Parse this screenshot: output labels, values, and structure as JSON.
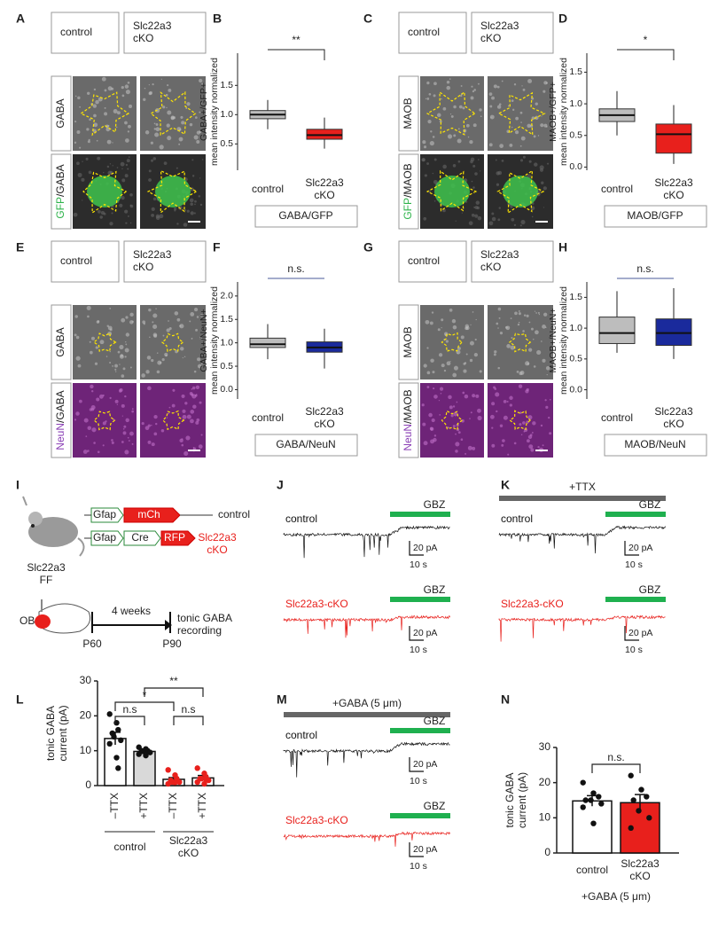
{
  "panel_labels": [
    "A",
    "B",
    "C",
    "D",
    "E",
    "F",
    "G",
    "H",
    "I",
    "J",
    "K",
    "L",
    "M",
    "N"
  ],
  "image_panels": [
    {
      "columns": [
        "control",
        "Slc22a3\ncKO"
      ],
      "rows": [
        [
          "GABA"
        ],
        [
          "GFP",
          "/GABA"
        ]
      ],
      "marker_color": "#2db34a"
    },
    {
      "columns": [
        "control",
        "Slc22a3\ncKO"
      ],
      "rows": [
        [
          "MAOB"
        ],
        [
          "GFP",
          "/MAOB"
        ]
      ],
      "marker_color": "#2db34a"
    },
    {
      "columns": [
        "control",
        "Slc22a3\ncKO"
      ],
      "rows": [
        [
          "GABA"
        ],
        [
          "NeuN",
          "/GABA"
        ]
      ],
      "marker_color": "#8a3fb5"
    },
    {
      "columns": [
        "control",
        "Slc22a3\ncKO"
      ],
      "rows": [
        [
          "MAOB"
        ],
        [
          "NeuN",
          "/MAOB"
        ]
      ],
      "marker_color": "#8a3fb5"
    }
  ],
  "chart_data": [
    {
      "type": "box",
      "y_label": "GABA+/GFP+\nmean intensity normalized",
      "footer": "GABA/GFP",
      "categories": [
        "control",
        "Slc22a3\ncKO"
      ],
      "colors": [
        "#bdbdbd",
        "#e8201c"
      ],
      "boxes": [
        {
          "whisker_low": 0.75,
          "q1": 0.93,
          "median": 1.0,
          "q3": 1.07,
          "whisker_high": 1.25
        },
        {
          "whisker_low": 0.42,
          "q1": 0.58,
          "median": 0.65,
          "q3": 0.75,
          "whisker_high": 0.95
        }
      ],
      "ylim": [
        0.05,
        2.05
      ],
      "yticks": [
        0.5,
        {
          "value": 1,
          "label": "1.0"
        },
        1.5
      ],
      "significance": "**"
    },
    {
      "type": "box",
      "y_label": "MAOB+/GFP+\nmean intensity normalized",
      "footer": "MAOB/GFP",
      "categories": [
        "control",
        "Slc22a3\ncKO"
      ],
      "colors": [
        "#bdbdbd",
        "#e8201c"
      ],
      "boxes": [
        {
          "whisker_low": 0.5,
          "q1": 0.72,
          "median": 0.82,
          "q3": 0.92,
          "whisker_high": 1.2
        },
        {
          "whisker_low": 0.05,
          "q1": 0.22,
          "median": 0.52,
          "q3": 0.68,
          "whisker_high": 0.98
        }
      ],
      "ylim": [
        -0.05,
        1.8
      ],
      "yticks": [
        {
          "value": 0,
          "label": "0.0"
        },
        0.5,
        {
          "value": 1,
          "label": "1.0"
        },
        1.5
      ],
      "significance": "*"
    },
    {
      "type": "box",
      "y_label": "GABA+/NeuN+\nmean intensity normalized",
      "footer": "GABA/NeuN",
      "categories": [
        "control",
        "Slc22a3\ncKO"
      ],
      "colors": [
        "#bdbdbd",
        "#1a2a9c"
      ],
      "boxes": [
        {
          "whisker_low": 0.65,
          "q1": 0.9,
          "median": 0.97,
          "q3": 1.1,
          "whisker_high": 1.4
        },
        {
          "whisker_low": 0.45,
          "q1": 0.8,
          "median": 0.9,
          "q3": 1.02,
          "whisker_high": 1.3
        }
      ],
      "ylim": [
        -0.2,
        2.3
      ],
      "yticks": [
        {
          "value": 0,
          "label": "0.0"
        },
        0.5,
        {
          "value": 1,
          "label": "1.0"
        },
        1.5,
        {
          "value": 2,
          "label": "2.0"
        }
      ],
      "significance": "n.s."
    },
    {
      "type": "box",
      "y_label": "MAOB+/NeuN+\nmean intensity normalized",
      "footer": "MAOB/NeuN",
      "categories": [
        "control",
        "Slc22a3\ncKO"
      ],
      "colors": [
        "#bdbdbd",
        "#1a2a9c"
      ],
      "boxes": [
        {
          "whisker_low": 0.6,
          "q1": 0.75,
          "median": 0.92,
          "q3": 1.18,
          "whisker_high": 1.6
        },
        {
          "whisker_low": 0.5,
          "q1": 0.72,
          "median": 0.92,
          "q3": 1.15,
          "whisker_high": 1.65
        }
      ],
      "ylim": [
        -0.15,
        1.75
      ],
      "yticks": [
        {
          "value": 0,
          "label": "0.0"
        },
        0.5,
        {
          "value": 1,
          "label": "1.0"
        },
        1.5
      ],
      "significance": "n.s."
    },
    {
      "type": "bar",
      "y_label": "tonic GABA\ncurrent (pA)",
      "categories": [
        "–TTX",
        "+TTX",
        "–TTX",
        "+TTX"
      ],
      "groups": [
        "control",
        "Slc22a3\ncKO"
      ],
      "values": [
        13.5,
        9.8,
        1.8,
        2.2
      ],
      "errors": [
        1.8,
        0.6,
        0.5,
        0.7
      ],
      "colors": [
        "#ffffff",
        "#d9d9d9",
        "#ffffff",
        "#ffffff"
      ],
      "point_colors": [
        "#111111",
        "#111111",
        "#e8201c",
        "#e8201c"
      ],
      "points": [
        [
          20.5,
          18,
          16,
          15,
          14,
          13,
          12,
          8,
          5
        ],
        [
          11,
          10.5,
          10,
          10,
          9.8,
          9.5,
          9,
          8.6
        ],
        [
          4.5,
          3,
          2,
          1.5,
          1,
          1,
          0.5,
          0.9
        ],
        [
          5,
          3.5,
          2.5,
          2,
          2,
          1.5,
          1,
          0.5,
          1.8
        ]
      ],
      "ylim": [
        0,
        30
      ],
      "yticks": [
        0,
        10,
        20,
        30
      ],
      "significance": [
        "n.s",
        "*",
        "**",
        "n.s"
      ]
    },
    {
      "type": "bar",
      "y_label": "tonic GABA\ncurrent (pA)",
      "x_label": "+GABA (5 μm)",
      "categories": [
        "control",
        "Slc22a3\ncKO"
      ],
      "values": [
        14.8,
        14.3
      ],
      "errors": [
        1.5,
        2.3
      ],
      "colors": [
        "#ffffff",
        "#e8201c"
      ],
      "point_colors": [
        "#111111",
        "#111111"
      ],
      "points": [
        [
          20,
          17,
          16,
          15,
          15,
          14,
          13,
          8.4
        ],
        [
          22,
          18,
          16,
          15,
          12,
          10,
          7.1
        ]
      ],
      "ylim": [
        0,
        30
      ],
      "yticks": [
        0,
        10,
        20,
        30
      ],
      "significance": [
        "n.s."
      ]
    }
  ],
  "diagram": {
    "mouse_line": "Slc22a3\nFF",
    "construct_1": [
      "Gfap",
      "mCh"
    ],
    "construct_1_label": "control",
    "construct_2": [
      "Gfap",
      "Cre",
      "RFP"
    ],
    "construct_2_label": "Slc22a3\ncKO",
    "injection_site": "OB",
    "interval": "4 weeks",
    "start": "P60",
    "end": "P90",
    "readout": "tonic GABA\nrecording"
  },
  "traces": [
    {
      "conditions": [
        "control",
        "Slc22a3-cKO"
      ],
      "drug": "GBZ",
      "scale_y": "20 pA",
      "scale_x": "10 s"
    },
    {
      "pre": "+TTX",
      "conditions": [
        "control",
        "Slc22a3-cKO"
      ],
      "drug": "GBZ",
      "scale_y": "20 pA",
      "scale_x": "10 s"
    },
    {
      "pre": "+GABA (5 μm)",
      "conditions": [
        "control",
        "Slc22a3-cKO"
      ],
      "drug": "GBZ",
      "scale_y": "20 pA",
      "scale_x": "10 s"
    }
  ]
}
